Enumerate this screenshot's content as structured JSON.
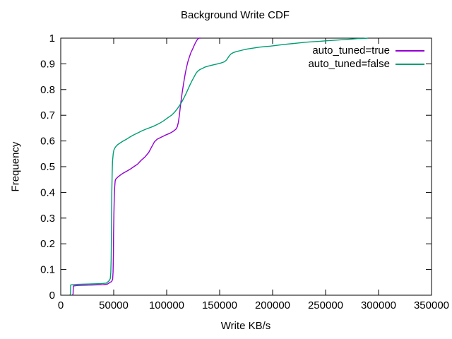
{
  "window": {
    "background": "#ffffff",
    "text_color": "#000000"
  },
  "chart_data": {
    "type": "line",
    "title": "Background Write CDF",
    "xlabel": "Write KB/s",
    "ylabel": "Frequency",
    "xlim": [
      0,
      350000
    ],
    "ylim": [
      0,
      1
    ],
    "grid": false,
    "legend_position": "top-right-inside",
    "x_ticks": [
      0,
      50000,
      100000,
      150000,
      200000,
      250000,
      300000,
      350000
    ],
    "x_tick_labels": [
      "0",
      "50000",
      "100000",
      "150000",
      "200000",
      "250000",
      "300000",
      "350000"
    ],
    "y_ticks": [
      0,
      0.1,
      0.2,
      0.3,
      0.4,
      0.5,
      0.6,
      0.7,
      0.8,
      0.9,
      1
    ],
    "y_tick_labels": [
      "0",
      "0.1",
      "0.2",
      "0.3",
      "0.4",
      "0.5",
      "0.6",
      "0.7",
      "0.8",
      "0.9",
      "1"
    ],
    "series": [
      {
        "name": "auto_tuned=true",
        "color": "#9400d3",
        "points": [
          [
            11000,
            0.002
          ],
          [
            11700,
            0.004
          ],
          [
            11900,
            0.036
          ],
          [
            16000,
            0.038
          ],
          [
            24000,
            0.039
          ],
          [
            32000,
            0.04
          ],
          [
            40000,
            0.041
          ],
          [
            44000,
            0.043
          ],
          [
            45500,
            0.047
          ],
          [
            46500,
            0.05
          ],
          [
            48000,
            0.053
          ],
          [
            49000,
            0.062
          ],
          [
            49400,
            0.09
          ],
          [
            49700,
            0.16
          ],
          [
            49900,
            0.24
          ],
          [
            50200,
            0.32
          ],
          [
            50500,
            0.38
          ],
          [
            50900,
            0.42
          ],
          [
            51400,
            0.445
          ],
          [
            52000,
            0.452
          ],
          [
            54000,
            0.46
          ],
          [
            56500,
            0.468
          ],
          [
            59000,
            0.475
          ],
          [
            62000,
            0.482
          ],
          [
            65500,
            0.49
          ],
          [
            69000,
            0.5
          ],
          [
            72500,
            0.51
          ],
          [
            76000,
            0.525
          ],
          [
            79500,
            0.538
          ],
          [
            83000,
            0.555
          ],
          [
            86000,
            0.578
          ],
          [
            88500,
            0.597
          ],
          [
            91000,
            0.607
          ],
          [
            95000,
            0.615
          ],
          [
            99000,
            0.623
          ],
          [
            103000,
            0.63
          ],
          [
            106000,
            0.637
          ],
          [
            108500,
            0.645
          ],
          [
            110000,
            0.655
          ],
          [
            111000,
            0.672
          ],
          [
            112000,
            0.7
          ],
          [
            112800,
            0.73
          ],
          [
            113500,
            0.755
          ],
          [
            114500,
            0.785
          ],
          [
            115500,
            0.812
          ],
          [
            116500,
            0.838
          ],
          [
            117500,
            0.862
          ],
          [
            118700,
            0.885
          ],
          [
            120000,
            0.908
          ],
          [
            121500,
            0.928
          ],
          [
            123000,
            0.945
          ],
          [
            124500,
            0.958
          ],
          [
            126000,
            0.972
          ],
          [
            127500,
            0.985
          ],
          [
            129000,
            0.995
          ],
          [
            130500,
            1.0
          ],
          [
            132000,
            1.0
          ]
        ]
      },
      {
        "name": "auto_tuned=false",
        "color": "#009e73",
        "points": [
          [
            8500,
            0.002
          ],
          [
            9200,
            0.004
          ],
          [
            9400,
            0.04
          ],
          [
            14000,
            0.042
          ],
          [
            22000,
            0.043
          ],
          [
            30000,
            0.044
          ],
          [
            38000,
            0.045
          ],
          [
            43000,
            0.047
          ],
          [
            44500,
            0.052
          ],
          [
            45800,
            0.057
          ],
          [
            46800,
            0.065
          ],
          [
            47300,
            0.09
          ],
          [
            47600,
            0.14
          ],
          [
            47800,
            0.22
          ],
          [
            48000,
            0.32
          ],
          [
            48200,
            0.4
          ],
          [
            48500,
            0.47
          ],
          [
            48900,
            0.52
          ],
          [
            49500,
            0.55
          ],
          [
            50200,
            0.565
          ],
          [
            51000,
            0.572
          ],
          [
            52000,
            0.578
          ],
          [
            53500,
            0.585
          ],
          [
            56000,
            0.592
          ],
          [
            59000,
            0.6
          ],
          [
            62500,
            0.608
          ],
          [
            66000,
            0.617
          ],
          [
            69500,
            0.625
          ],
          [
            73000,
            0.632
          ],
          [
            77000,
            0.64
          ],
          [
            81000,
            0.647
          ],
          [
            85000,
            0.653
          ],
          [
            89000,
            0.66
          ],
          [
            93000,
            0.668
          ],
          [
            97000,
            0.678
          ],
          [
            101000,
            0.69
          ],
          [
            104500,
            0.7
          ],
          [
            107500,
            0.712
          ],
          [
            110000,
            0.725
          ],
          [
            112000,
            0.737
          ],
          [
            114000,
            0.75
          ],
          [
            116000,
            0.765
          ],
          [
            118000,
            0.782
          ],
          [
            120000,
            0.8
          ],
          [
            122000,
            0.818
          ],
          [
            124000,
            0.835
          ],
          [
            126000,
            0.85
          ],
          [
            127500,
            0.862
          ],
          [
            129000,
            0.87
          ],
          [
            131000,
            0.877
          ],
          [
            133500,
            0.882
          ],
          [
            136000,
            0.887
          ],
          [
            139000,
            0.891
          ],
          [
            143000,
            0.895
          ],
          [
            147000,
            0.899
          ],
          [
            151000,
            0.903
          ],
          [
            154500,
            0.908
          ],
          [
            156500,
            0.915
          ],
          [
            158500,
            0.928
          ],
          [
            160500,
            0.938
          ],
          [
            163000,
            0.944
          ],
          [
            166000,
            0.948
          ],
          [
            170000,
            0.952
          ],
          [
            174000,
            0.956
          ],
          [
            178000,
            0.959
          ],
          [
            183000,
            0.962
          ],
          [
            188000,
            0.965
          ],
          [
            193000,
            0.967
          ],
          [
            198000,
            0.969
          ],
          [
            204000,
            0.972
          ],
          [
            210000,
            0.975
          ],
          [
            217000,
            0.978
          ],
          [
            224000,
            0.981
          ],
          [
            231000,
            0.984
          ],
          [
            238000,
            0.986
          ],
          [
            245000,
            0.988
          ],
          [
            252000,
            0.99
          ],
          [
            259000,
            0.992
          ],
          [
            266000,
            0.994
          ],
          [
            273000,
            0.996
          ],
          [
            280000,
            0.998
          ],
          [
            286000,
            0.999
          ],
          [
            290000,
            1.0
          ]
        ]
      }
    ]
  }
}
